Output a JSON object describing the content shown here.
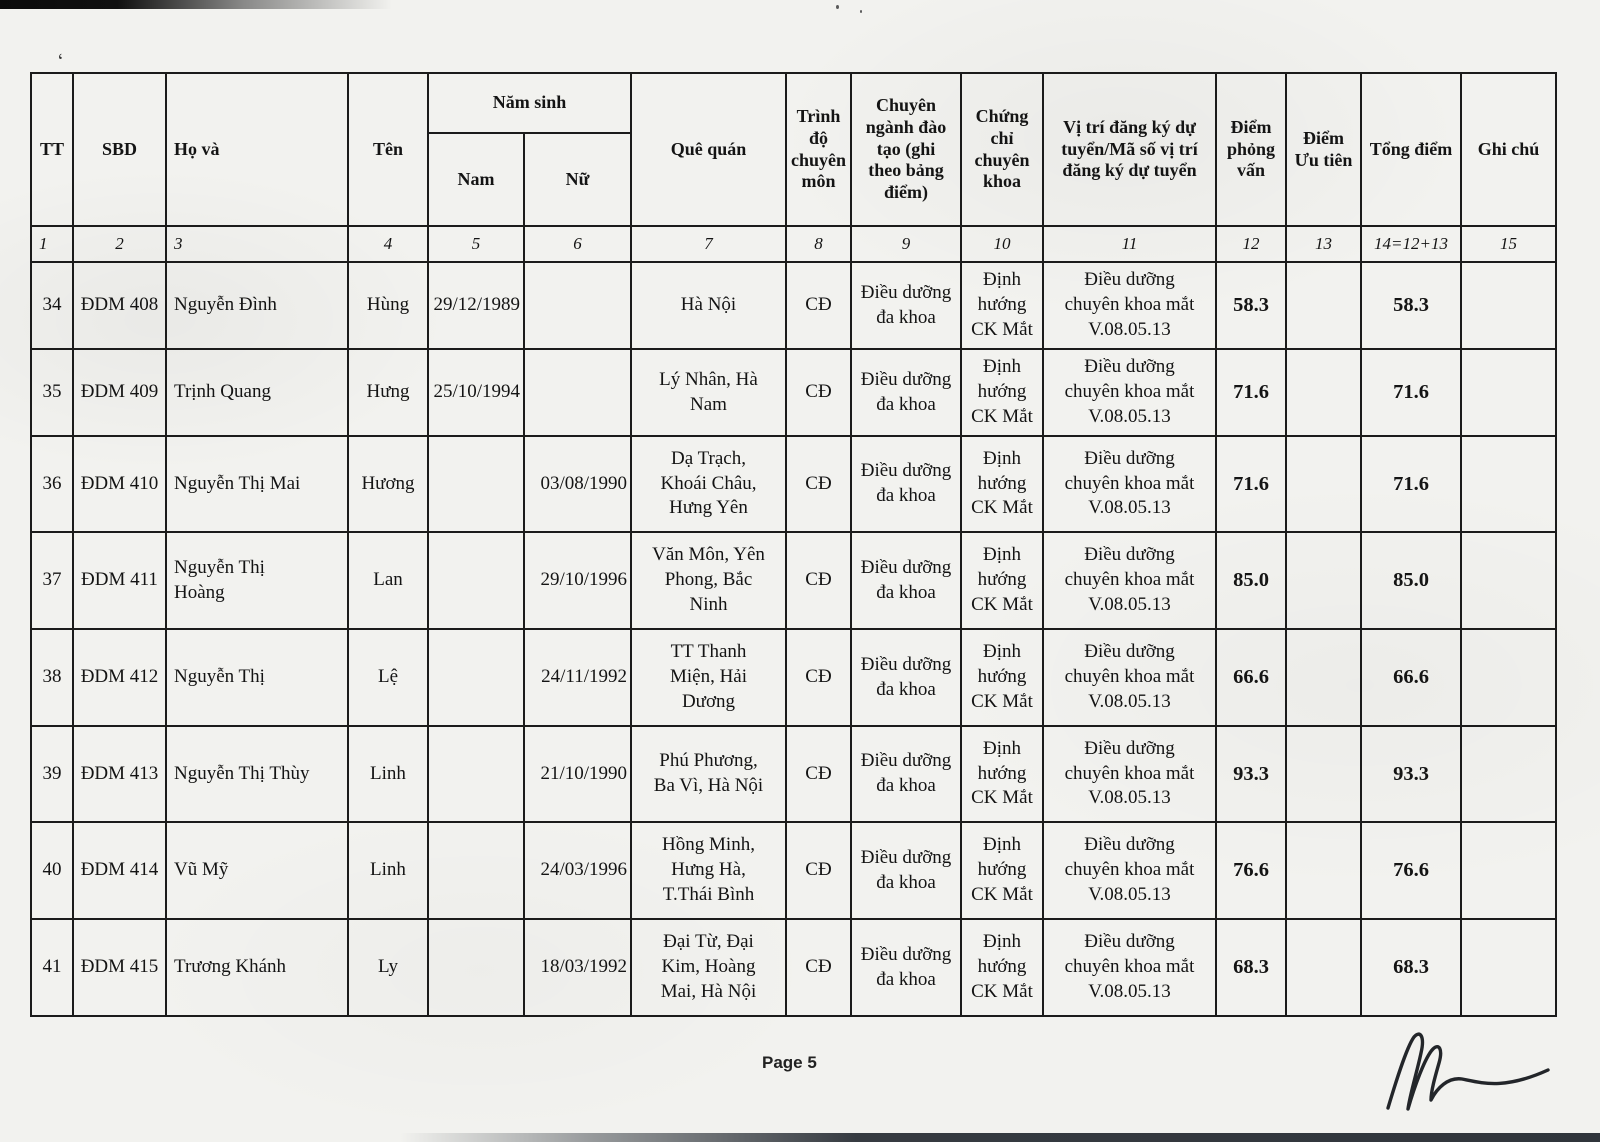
{
  "page": {
    "page_label": "Page 5"
  },
  "colors": {
    "paper": "#f2f2ef",
    "ink": "#1b1b1b"
  },
  "table": {
    "headers": {
      "tt": "TT",
      "sbd": "SBD",
      "ho_va": "Họ và",
      "ten": "Tên",
      "nam_sinh": "Năm sinh",
      "nam": "Nam",
      "nu": "Nữ",
      "que_quan": "Quê quán",
      "trinh_do": "Trình\nđộ\nchuyên\nmôn",
      "chuyen_nganh": "Chuyên\nngành đào\ntạo (ghi\ntheo bảng\nđiểm)",
      "chung_chi": "Chứng\nchỉ\nchuyên\nkhoa",
      "vi_tri": "Vị trí đăng ký dự\ntuyển/Mã số vị trí\nđăng ký dự tuyển",
      "diem_phong_van": "Điểm\nphỏng\nvấn",
      "diem_uu_tien": "Điểm\nƯu tiên",
      "tong_diem": "Tổng điểm",
      "ghi_chu": "Ghi chú"
    },
    "column_numbers": [
      "1",
      "2",
      "3",
      "4",
      "5",
      "6",
      "7",
      "8",
      "9",
      "10",
      "11",
      "12",
      "13",
      "14=12+13",
      "15"
    ],
    "rows": [
      {
        "tt": "34",
        "sbd": "ĐDM 408",
        "ho_va": "Nguyễn Đình",
        "ten": "Hùng",
        "nam": "29/12/1989",
        "nu": "",
        "que_quan": "Hà Nội",
        "trinh_do": "CĐ",
        "chuyen_nganh": "Điều dưỡng\nđa khoa",
        "chung_chi": "Định\nhướng\nCK Mắt",
        "vi_tri": "Điều dưỡng\nchuyên khoa mắt\nV.08.05.13",
        "diem_pv": "58.3",
        "diem_ut": "",
        "tong_diem": "58.3",
        "ghi_chu": ""
      },
      {
        "tt": "35",
        "sbd": "ĐDM 409",
        "ho_va": "Trịnh Quang",
        "ten": "Hưng",
        "nam": "25/10/1994",
        "nu": "",
        "que_quan": "Lý Nhân, Hà\nNam",
        "trinh_do": "CĐ",
        "chuyen_nganh": "Điều dưỡng\nđa khoa",
        "chung_chi": "Định\nhướng\nCK Mắt",
        "vi_tri": "Điều dưỡng\nchuyên khoa mắt\nV.08.05.13",
        "diem_pv": "71.6",
        "diem_ut": "",
        "tong_diem": "71.6",
        "ghi_chu": ""
      },
      {
        "tt": "36",
        "sbd": "ĐDM 410",
        "ho_va": "Nguyễn Thị Mai",
        "ten": "Hương",
        "nam": "",
        "nu": "03/08/1990",
        "que_quan": "Dạ Trạch,\nKhoái Châu,\nHưng Yên",
        "trinh_do": "CĐ",
        "chuyen_nganh": "Điều dưỡng\nđa khoa",
        "chung_chi": "Định\nhướng\nCK Mắt",
        "vi_tri": "Điều dưỡng\nchuyên khoa mắt\nV.08.05.13",
        "diem_pv": "71.6",
        "diem_ut": "",
        "tong_diem": "71.6",
        "ghi_chu": ""
      },
      {
        "tt": "37",
        "sbd": "ĐDM 411",
        "ho_va": "Nguyễn Thị\nHoàng",
        "ten": "Lan",
        "nam": "",
        "nu": "29/10/1996",
        "que_quan": "Văn Môn, Yên\nPhong, Bắc\nNinh",
        "trinh_do": "CĐ",
        "chuyen_nganh": "Điều dưỡng\nđa khoa",
        "chung_chi": "Định\nhướng\nCK Mắt",
        "vi_tri": "Điều dưỡng\nchuyên khoa mắt\nV.08.05.13",
        "diem_pv": "85.0",
        "diem_ut": "",
        "tong_diem": "85.0",
        "ghi_chu": ""
      },
      {
        "tt": "38",
        "sbd": "ĐDM 412",
        "ho_va": "Nguyễn Thị",
        "ten": "Lệ",
        "nam": "",
        "nu": "24/11/1992",
        "que_quan": "TT Thanh\nMiện, Hải\nDương",
        "trinh_do": "CĐ",
        "chuyen_nganh": "Điều dưỡng\nđa khoa",
        "chung_chi": "Định\nhướng\nCK Mắt",
        "vi_tri": "Điều dưỡng\nchuyên khoa mắt\nV.08.05.13",
        "diem_pv": "66.6",
        "diem_ut": "",
        "tong_diem": "66.6",
        "ghi_chu": ""
      },
      {
        "tt": "39",
        "sbd": "ĐDM 413",
        "ho_va": "Nguyễn Thị Thùy",
        "ten": "Linh",
        "nam": "",
        "nu": "21/10/1990",
        "que_quan": "Phú Phương,\nBa Vì, Hà Nội",
        "trinh_do": "CĐ",
        "chuyen_nganh": "Điều dưỡng\nđa khoa",
        "chung_chi": "Định\nhướng\nCK Mắt",
        "vi_tri": "Điều dưỡng\nchuyên khoa mắt\nV.08.05.13",
        "diem_pv": "93.3",
        "diem_ut": "",
        "tong_diem": "93.3",
        "ghi_chu": ""
      },
      {
        "tt": "40",
        "sbd": "ĐDM 414",
        "ho_va": "Vũ Mỹ",
        "ten": "Linh",
        "nam": "",
        "nu": "24/03/1996",
        "que_quan": "Hồng Minh,\nHưng Hà,\nT.Thái Bình",
        "trinh_do": "CĐ",
        "chuyen_nganh": "Điều dưỡng\nđa khoa",
        "chung_chi": "Định\nhướng\nCK Mắt",
        "vi_tri": "Điều dưỡng\nchuyên khoa mắt\nV.08.05.13",
        "diem_pv": "76.6",
        "diem_ut": "",
        "tong_diem": "76.6",
        "ghi_chu": ""
      },
      {
        "tt": "41",
        "sbd": "ĐDM 415",
        "ho_va": "Trương Khánh",
        "ten": "Ly",
        "nam": "",
        "nu": "18/03/1992",
        "que_quan": "Đại Từ, Đại\nKim, Hoàng\nMai, Hà Nội",
        "trinh_do": "CĐ",
        "chuyen_nganh": "Điều dưỡng\nđa khoa",
        "chung_chi": "Định\nhướng\nCK Mắt",
        "vi_tri": "Điều dưỡng\nchuyên khoa mắt\nV.08.05.13",
        "diem_pv": "68.3",
        "diem_ut": "",
        "tong_diem": "68.3",
        "ghi_chu": ""
      }
    ]
  }
}
